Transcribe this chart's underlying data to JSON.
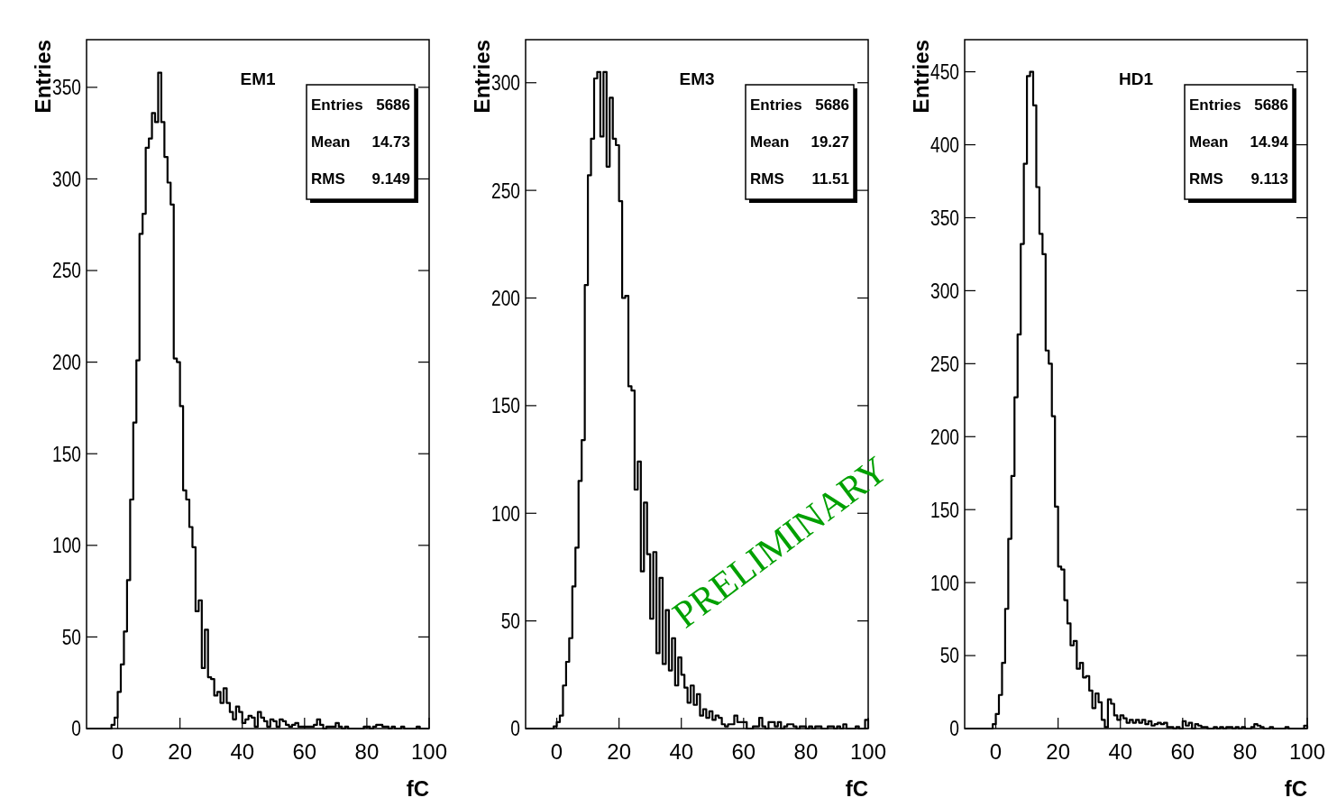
{
  "chart_data": [
    {
      "type": "histogram",
      "title": "EM1",
      "xlabel": "fC",
      "ylabel": "Entries",
      "color": "#000000",
      "xlim": [
        -10,
        100
      ],
      "xticks": [
        0,
        20,
        40,
        60,
        80,
        100
      ],
      "ylim": [
        0,
        376
      ],
      "yticks": [
        0,
        50,
        100,
        150,
        200,
        250,
        300,
        350
      ],
      "annotations": [
        "Entries 5686",
        "Mean 14.73",
        "RMS 9.149"
      ],
      "bins": [
        -10,
        -9,
        -8,
        -7,
        -6,
        -5,
        -4,
        -3,
        -2,
        -1,
        0,
        1,
        2,
        3,
        4,
        5,
        6,
        7,
        8,
        9,
        10,
        11,
        12,
        13,
        14,
        15,
        16,
        17,
        18,
        19,
        20,
        21,
        22,
        23,
        24,
        25,
        26,
        27,
        28,
        29,
        30,
        31,
        32,
        33,
        34,
        35,
        36,
        37,
        38,
        39,
        40,
        41,
        42,
        43,
        44,
        45,
        46,
        47,
        48,
        49,
        50,
        51,
        52,
        53,
        54,
        55,
        56,
        57,
        58,
        59,
        60,
        61,
        62,
        63,
        64,
        65,
        66,
        67,
        68,
        69,
        70,
        71,
        72,
        73,
        74,
        75,
        76,
        77,
        78,
        79,
        80,
        81,
        82,
        83,
        84,
        85,
        86,
        87,
        88,
        89,
        90,
        91,
        92,
        93,
        94,
        95,
        96,
        97,
        98,
        99,
        100
      ],
      "values": [
        0,
        0,
        0,
        0,
        0,
        0,
        0,
        0,
        2,
        6,
        20,
        35,
        53,
        81,
        125,
        167,
        201,
        270,
        281,
        317,
        322,
        336,
        331,
        358,
        331,
        312,
        298,
        286,
        202,
        200,
        176,
        130,
        125,
        110,
        99,
        64,
        70,
        33,
        54,
        28,
        27,
        18,
        20,
        14,
        22,
        14,
        9,
        5,
        12,
        9,
        3,
        5,
        7,
        6,
        1,
        9,
        6,
        4,
        1,
        5,
        4,
        1,
        5,
        4,
        2,
        1,
        2,
        3,
        1,
        1,
        1,
        1,
        1,
        2,
        5,
        2,
        0,
        1,
        1,
        1,
        3,
        1,
        0,
        1,
        0,
        0,
        0,
        0,
        0,
        1,
        1,
        0,
        1,
        2,
        2,
        1,
        1,
        0,
        1,
        0,
        0,
        1,
        0,
        0,
        0,
        0,
        1,
        0,
        0,
        0
      ]
    },
    {
      "type": "histogram",
      "title": "EM3",
      "xlabel": "fC",
      "ylabel": "Entries",
      "color": "#000000",
      "xlim": [
        -10,
        100
      ],
      "xticks": [
        0,
        20,
        40,
        60,
        80,
        100
      ],
      "ylim": [
        0,
        320
      ],
      "yticks": [
        0,
        50,
        100,
        150,
        200,
        250,
        300
      ],
      "annotations": [
        "Entries 5686",
        "Mean 19.27",
        "RMS 11.51",
        "PRELIMINARY"
      ],
      "bins": [
        -10,
        -9,
        -8,
        -7,
        -6,
        -5,
        -4,
        -3,
        -2,
        -1,
        0,
        1,
        2,
        3,
        4,
        5,
        6,
        7,
        8,
        9,
        10,
        11,
        12,
        13,
        14,
        15,
        16,
        17,
        18,
        19,
        20,
        21,
        22,
        23,
        24,
        25,
        26,
        27,
        28,
        29,
        30,
        31,
        32,
        33,
        34,
        35,
        36,
        37,
        38,
        39,
        40,
        41,
        42,
        43,
        44,
        45,
        46,
        47,
        48,
        49,
        50,
        51,
        52,
        53,
        54,
        55,
        56,
        57,
        58,
        59,
        60,
        61,
        62,
        63,
        64,
        65,
        66,
        67,
        68,
        69,
        70,
        71,
        72,
        73,
        74,
        75,
        76,
        77,
        78,
        79,
        80,
        81,
        82,
        83,
        84,
        85,
        86,
        87,
        88,
        89,
        90,
        91,
        92,
        93,
        94,
        95,
        96,
        97,
        98,
        99,
        100
      ],
      "values": [
        0,
        0,
        0,
        0,
        0,
        0,
        0,
        0,
        0,
        1,
        3,
        6,
        20,
        31,
        42,
        66,
        84,
        115,
        134,
        206,
        257,
        274,
        302,
        305,
        275,
        305,
        261,
        293,
        274,
        271,
        245,
        200,
        201,
        159,
        157,
        111,
        124,
        73,
        105,
        81,
        51,
        82,
        35,
        70,
        30,
        55,
        27,
        42,
        20,
        33,
        25,
        19,
        12,
        20,
        11,
        16,
        6,
        9,
        5,
        8,
        4,
        6,
        5,
        2,
        1,
        2,
        2,
        6,
        3,
        3,
        3,
        0,
        0,
        1,
        1,
        5,
        1,
        0,
        3,
        3,
        1,
        3,
        0,
        1,
        2,
        2,
        1,
        0,
        1,
        1,
        0,
        1,
        0,
        1,
        1,
        0,
        0,
        1,
        1,
        0,
        1,
        0,
        2,
        0,
        0,
        0,
        1,
        0,
        0,
        4
      ]
    },
    {
      "type": "histogram",
      "title": "HD1",
      "xlabel": "fC",
      "ylabel": "Entries",
      "color": "#000000",
      "xlim": [
        -10,
        100
      ],
      "xticks": [
        0,
        20,
        40,
        60,
        80,
        100
      ],
      "ylim": [
        0,
        472
      ],
      "yticks": [
        0,
        50,
        100,
        150,
        200,
        250,
        300,
        350,
        400,
        450
      ],
      "annotations": [
        "Entries 5686",
        "Mean 14.94",
        "RMS 9.113"
      ],
      "bins": [
        -10,
        -9,
        -8,
        -7,
        -6,
        -5,
        -4,
        -3,
        -2,
        -1,
        0,
        1,
        2,
        3,
        4,
        5,
        6,
        7,
        8,
        9,
        10,
        11,
        12,
        13,
        14,
        15,
        16,
        17,
        18,
        19,
        20,
        21,
        22,
        23,
        24,
        25,
        26,
        27,
        28,
        29,
        30,
        31,
        32,
        33,
        34,
        35,
        36,
        37,
        38,
        39,
        40,
        41,
        42,
        43,
        44,
        45,
        46,
        47,
        48,
        49,
        50,
        51,
        52,
        53,
        54,
        55,
        56,
        57,
        58,
        59,
        60,
        61,
        62,
        63,
        64,
        65,
        66,
        67,
        68,
        69,
        70,
        71,
        72,
        73,
        74,
        75,
        76,
        77,
        78,
        79,
        80,
        81,
        82,
        83,
        84,
        85,
        86,
        87,
        88,
        89,
        90,
        91,
        92,
        93,
        94,
        95,
        96,
        97,
        98,
        99,
        100
      ],
      "values": [
        0,
        0,
        0,
        0,
        0,
        0,
        0,
        0,
        0,
        3,
        10,
        23,
        45,
        82,
        130,
        173,
        227,
        270,
        332,
        387,
        447,
        450,
        427,
        371,
        339,
        325,
        259,
        250,
        214,
        152,
        111,
        109,
        88,
        72,
        57,
        60,
        41,
        45,
        35,
        36,
        26,
        14,
        24,
        18,
        6,
        1,
        20,
        17,
        9,
        6,
        9,
        7,
        4,
        6,
        4,
        6,
        4,
        6,
        3,
        5,
        2,
        3,
        4,
        3,
        4,
        1,
        1,
        0,
        1,
        0,
        5,
        2,
        4,
        0,
        3,
        2,
        1,
        1,
        0,
        0,
        1,
        0,
        1,
        0,
        1,
        1,
        0,
        1,
        0,
        1,
        0,
        0,
        1,
        3,
        2,
        1,
        0,
        0,
        1,
        0,
        0,
        0,
        0,
        1,
        0,
        0,
        0,
        0,
        0,
        2
      ]
    }
  ]
}
